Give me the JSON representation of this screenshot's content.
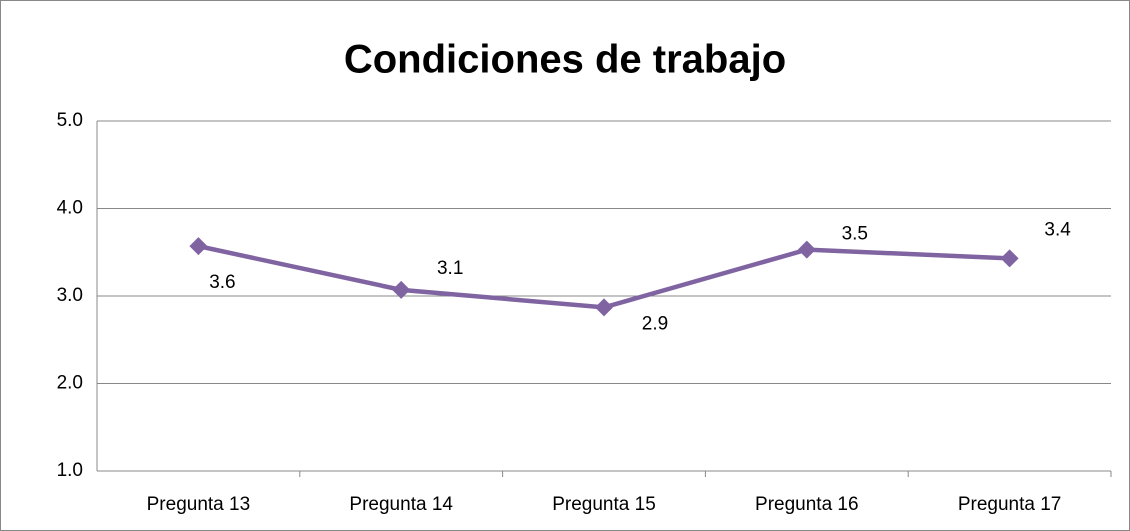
{
  "chart_data": {
    "type": "line",
    "title": "Condiciones de trabajo",
    "categories": [
      "Pregunta 13",
      "Pregunta 14",
      "Pregunta 15",
      "Pregunta 16",
      "Pregunta 17"
    ],
    "series": [
      {
        "name": "Condiciones de trabajo",
        "color": "#8064a2",
        "values": [
          3.57,
          3.07,
          2.87,
          3.53,
          3.43
        ],
        "value_labels": [
          "3.6",
          "3.1",
          "2.9",
          "3.5",
          "3.4"
        ]
      }
    ],
    "ylim": [
      1,
      5
    ],
    "yticks": [
      {
        "value": 1,
        "label": "1.0"
      },
      {
        "value": 2,
        "label": "2.0"
      },
      {
        "value": 3,
        "label": "3.0"
      },
      {
        "value": 4,
        "label": "4.0"
      },
      {
        "value": 5,
        "label": "5.0"
      }
    ],
    "grid": true
  }
}
